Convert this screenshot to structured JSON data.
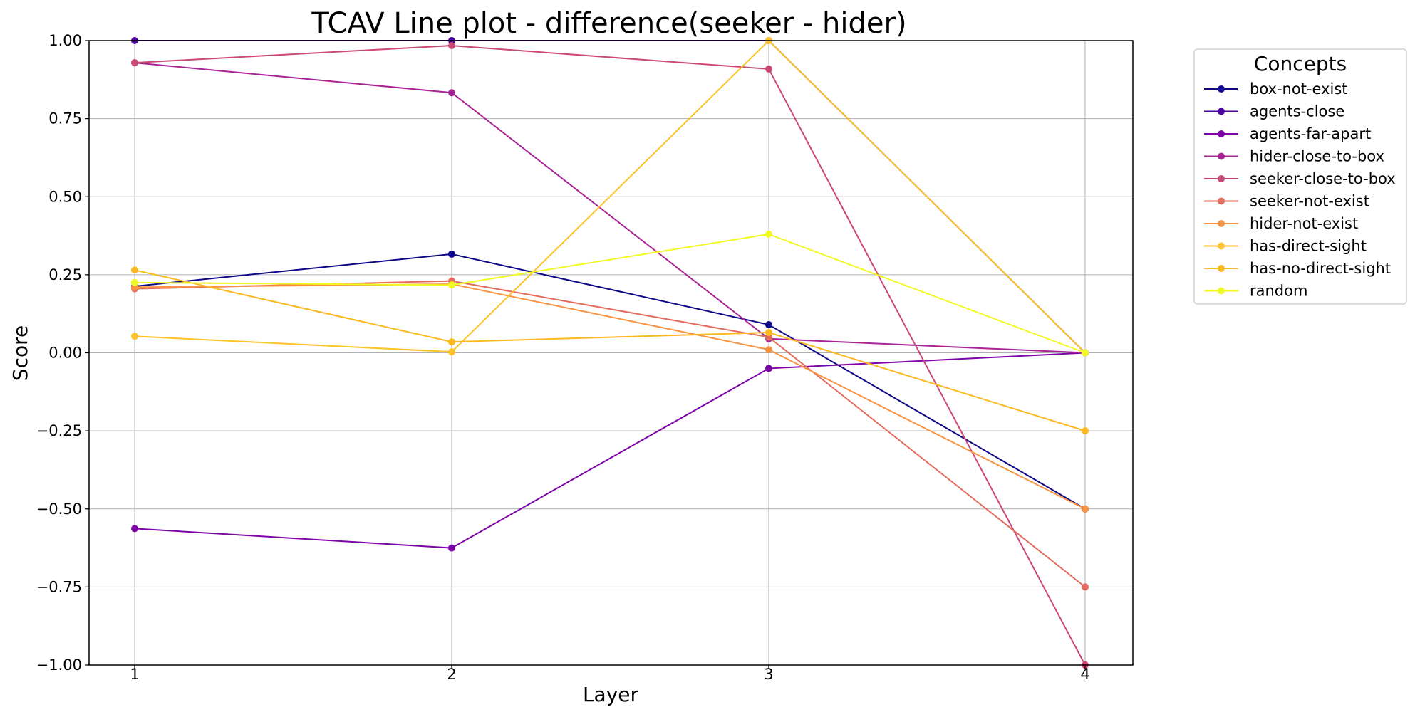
{
  "chart_data": {
    "type": "line",
    "title": "TCAV Line plot - difference(seeker - hider)",
    "xlabel": "Layer",
    "ylabel": "Score",
    "x": [
      1,
      2,
      3,
      4
    ],
    "xticks": [
      "1",
      "2",
      "3",
      "4"
    ],
    "ylim": [
      -1.0,
      1.0
    ],
    "yticks": [
      "−1.00",
      "−0.75",
      "−0.50",
      "−0.25",
      "0.00",
      "0.25",
      "0.50",
      "0.75",
      "1.00"
    ],
    "ytick_values": [
      -1.0,
      -0.75,
      -0.5,
      -0.25,
      0.0,
      0.25,
      0.5,
      0.75,
      1.0
    ],
    "grid": true,
    "legend": {
      "title": "Concepts",
      "placement": "outside right, top"
    },
    "series": [
      {
        "name": "box-not-exist",
        "color": "#0d0887",
        "values": [
          0.213,
          0.316,
          0.09,
          -0.5
        ]
      },
      {
        "name": "agents-close",
        "color": "#4c02a1",
        "values": [
          1.0,
          1.0,
          1.0,
          0.0
        ]
      },
      {
        "name": "agents-far-apart",
        "color": "#7e03a8",
        "values": [
          -0.563,
          -0.625,
          -0.05,
          0.0
        ]
      },
      {
        "name": "hider-close-to-box",
        "color": "#a92395",
        "values": [
          0.929,
          0.833,
          0.045,
          0.0
        ]
      },
      {
        "name": "seeker-close-to-box",
        "color": "#cc4778",
        "values": [
          0.929,
          0.984,
          0.909,
          -1.0
        ]
      },
      {
        "name": "seeker-not-exist",
        "color": "#e56b5d",
        "values": [
          0.205,
          0.23,
          0.05,
          -0.75
        ]
      },
      {
        "name": "hider-not-exist",
        "color": "#f89441",
        "values": [
          0.21,
          0.22,
          0.01,
          -0.5
        ]
      },
      {
        "name": "has-direct-sight",
        "color": "#fdc328",
        "values": [
          0.053,
          0.003,
          1.0,
          0.0
        ]
      },
      {
        "name": "has-no-direct-sight",
        "color": "#fbb91f",
        "values": [
          0.265,
          0.035,
          0.065,
          -0.25
        ]
      },
      {
        "name": "random",
        "color": "#f0f921",
        "values": [
          0.225,
          0.217,
          0.38,
          0.0
        ]
      }
    ]
  }
}
